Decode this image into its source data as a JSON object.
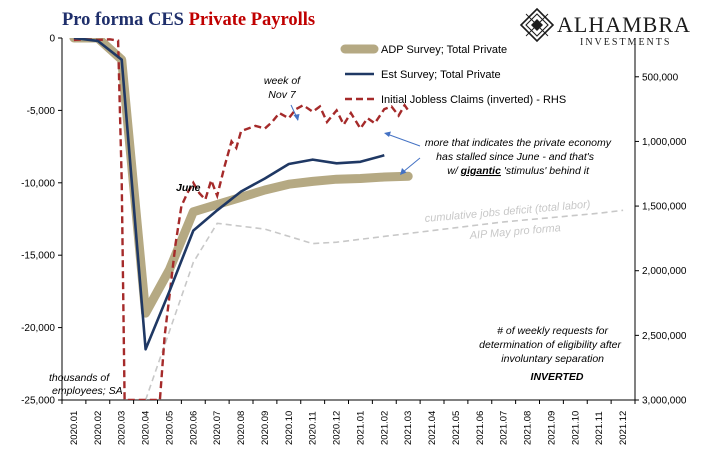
{
  "header": {
    "title_part1": "Pro forma CES ",
    "title_part2": "Private Payrolls",
    "title_color1": "#1f2f6b",
    "title_color2": "#c00000"
  },
  "logo": {
    "name": "ALHAMBRA",
    "tagline": "INVESTMENTS",
    "icon": "diamond-ornament-icon"
  },
  "annotations": {
    "week_line1": "week of",
    "week_line2": "Nov 7",
    "june": "June",
    "stalled_line1": "more that indicates the private economy",
    "stalled_line2": "has stalled since June - and that's",
    "stalled_line3_pre": "w/ ",
    "stalled_line3_emph": "gigantic",
    "stalled_line3_post": " 'stimulus' behind it",
    "deficit_line1": "cumulative jobs deficit (total labor)",
    "deficit_line2": "AIP May pro forma",
    "units_line1": "thousands of",
    "units_line2": "employees; SA",
    "claims_line1": "# of weekly requests for",
    "claims_line2": "determination of eligibility after",
    "claims_line3": "involuntary separation",
    "claims_line4": "INVERTED"
  },
  "chart_data": {
    "type": "line",
    "x": [
      "2020.01",
      "2020.02",
      "2020.03",
      "2020.04",
      "2020.05",
      "2020.06",
      "2020.07",
      "2020.08",
      "2020.09",
      "2020.10",
      "2020.11",
      "2020.12",
      "2021.01",
      "2021.02",
      "2021.03",
      "2021.04",
      "2021.05",
      "2021.06",
      "2021.07",
      "2021.08",
      "2021.09",
      "2021.10",
      "2021.11",
      "2021.12"
    ],
    "ylim": [
      -25000,
      0
    ],
    "y_ticks": [
      0,
      -5000,
      -10000,
      -15000,
      -20000,
      -25000
    ],
    "y_tick_labels": [
      "0",
      "-5,000",
      "-10,000",
      "-15,000",
      "-20,000",
      "-25,000"
    ],
    "y2lim": [
      200000,
      3000000
    ],
    "y2_inverted": true,
    "y2_ticks": [
      500000,
      1000000,
      1500000,
      2000000,
      2500000,
      3000000
    ],
    "y2_tick_labels": [
      "500,000",
      "1,000,000",
      "1,500,000",
      "2,000,000",
      "2,500,000",
      "3,000,000"
    ],
    "grid": false,
    "legend_position": "top-right",
    "series": [
      {
        "name": "ADP Survey; Total Private",
        "color": "#b5a983",
        "style": "thick",
        "axis": "left",
        "points": [
          [
            0,
            0
          ],
          [
            1,
            0
          ],
          [
            2,
            -1500
          ],
          [
            3,
            -19000
          ],
          [
            4,
            -16000
          ],
          [
            5,
            -12000
          ],
          [
            6,
            -11500
          ],
          [
            7,
            -11000
          ],
          [
            8,
            -10500
          ],
          [
            9,
            -10100
          ],
          [
            10,
            -9900
          ],
          [
            11,
            -9750
          ],
          [
            12,
            -9700
          ],
          [
            13,
            -9600
          ],
          [
            14,
            -9550
          ]
        ]
      },
      {
        "name": "Est Survey; Total Private",
        "color": "#1f3864",
        "style": "solid",
        "axis": "left",
        "points": [
          [
            0,
            0
          ],
          [
            1,
            -200
          ],
          [
            2,
            -1500
          ],
          [
            3,
            -21500
          ],
          [
            4,
            -17500
          ],
          [
            5,
            -13300
          ],
          [
            6,
            -11900
          ],
          [
            7,
            -10600
          ],
          [
            8,
            -9700
          ],
          [
            9,
            -8700
          ],
          [
            10,
            -8400
          ],
          [
            11,
            -8650
          ],
          [
            12,
            -8550
          ],
          [
            13,
            -8100
          ]
        ]
      },
      {
        "name": "Initial Jobless Claims (inverted) - RHS",
        "color": "#a52a2a",
        "style": "dashed",
        "axis": "right",
        "points": [
          [
            0.0,
            215000
          ],
          [
            0.5,
            210000
          ],
          [
            1.0,
            215000
          ],
          [
            1.5,
            210000
          ],
          [
            1.85,
            220000
          ],
          [
            2.0,
            1300000
          ],
          [
            2.12,
            3000000
          ],
          [
            3.6,
            3000000
          ],
          [
            3.8,
            2500000
          ],
          [
            4.0,
            2200000
          ],
          [
            4.25,
            1800000
          ],
          [
            4.5,
            1500000
          ],
          [
            4.75,
            1400000
          ],
          [
            5.0,
            1320000
          ],
          [
            5.25,
            1400000
          ],
          [
            5.5,
            1450000
          ],
          [
            5.75,
            1300000
          ],
          [
            6.0,
            1420000
          ],
          [
            6.3,
            1200000
          ],
          [
            6.6,
            1000000
          ],
          [
            6.8,
            1050000
          ],
          [
            7.0,
            920000
          ],
          [
            7.3,
            900000
          ],
          [
            7.6,
            880000
          ],
          [
            8.0,
            900000
          ],
          [
            8.3,
            850000
          ],
          [
            8.6,
            780000
          ],
          [
            9.0,
            820000
          ],
          [
            9.3,
            750000
          ],
          [
            9.6,
            720000
          ],
          [
            10.0,
            770000
          ],
          [
            10.3,
            730000
          ],
          [
            10.6,
            850000
          ],
          [
            11.0,
            760000
          ],
          [
            11.3,
            870000
          ],
          [
            11.6,
            780000
          ],
          [
            12.0,
            900000
          ],
          [
            12.3,
            820000
          ],
          [
            12.6,
            860000
          ],
          [
            13.0,
            750000
          ],
          [
            13.3,
            730000
          ],
          [
            13.6,
            800000
          ],
          [
            13.85,
            720000
          ],
          [
            14.0,
            760000
          ]
        ]
      },
      {
        "name": "",
        "color": "#c8c8c8",
        "style": "dashed",
        "axis": "left",
        "points": [
          [
            3,
            -25000
          ],
          [
            5,
            -15500
          ],
          [
            6,
            -12800
          ],
          [
            8,
            -13200
          ],
          [
            10,
            -14200
          ],
          [
            11,
            -14100
          ],
          [
            14,
            -13500
          ],
          [
            16,
            -13100
          ],
          [
            18,
            -12700
          ],
          [
            20,
            -12400
          ],
          [
            22,
            -12100
          ],
          [
            23,
            -11900
          ]
        ]
      }
    ]
  }
}
